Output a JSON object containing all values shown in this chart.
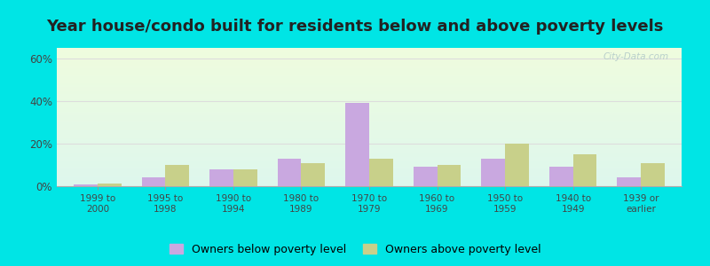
{
  "title": "Year house/condo built for residents below and above poverty levels",
  "categories": [
    "1999 to\n2000",
    "1995 to\n1998",
    "1990 to\n1994",
    "1980 to\n1989",
    "1970 to\n1979",
    "1960 to\n1969",
    "1950 to\n1959",
    "1940 to\n1949",
    "1939 or\nearlier"
  ],
  "below_poverty": [
    1.0,
    4.0,
    8.0,
    13.0,
    39.0,
    9.0,
    13.0,
    9.0,
    4.0
  ],
  "above_poverty": [
    1.2,
    10.0,
    8.0,
    11.0,
    13.0,
    10.0,
    20.0,
    15.0,
    11.0
  ],
  "below_color": "#c9a8e0",
  "above_color": "#c8d08a",
  "ylim": [
    0,
    65
  ],
  "yticks": [
    0,
    20,
    40,
    60
  ],
  "ytick_labels": [
    "0%",
    "20%",
    "40%",
    "60%"
  ],
  "outer_bg": "#00e5e5",
  "title_fontsize": 13,
  "bar_width": 0.35,
  "legend_below_label": "Owners below poverty level",
  "legend_above_label": "Owners above poverty level"
}
